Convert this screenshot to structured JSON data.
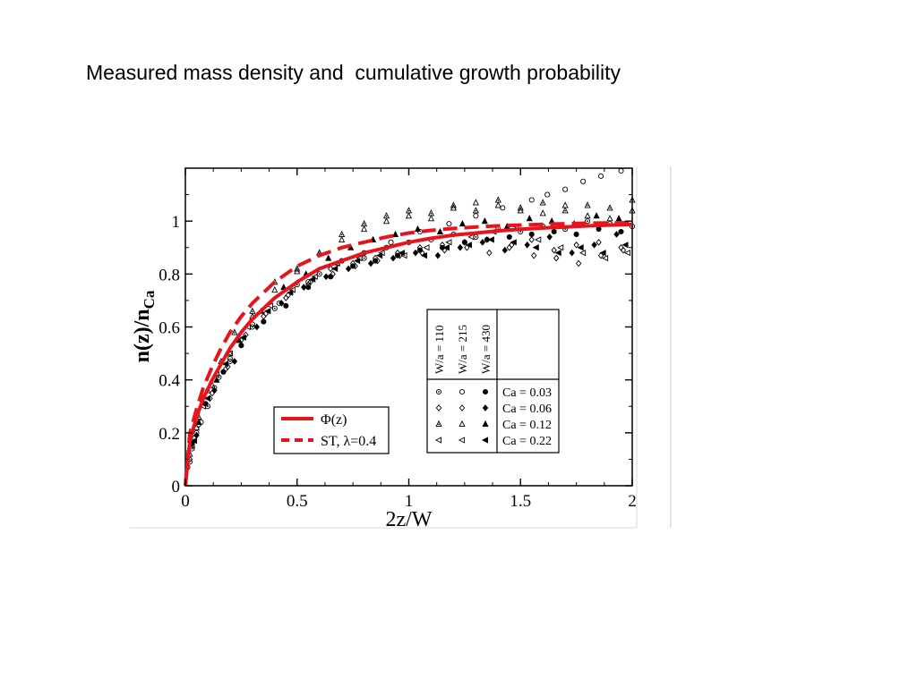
{
  "slide": {
    "title": "Measured mass density and  cumulative growth probability"
  },
  "colors": {
    "fit_line": "#e8141b",
    "markers": "#000000",
    "frame": "#000000"
  },
  "chart_data": {
    "type": "scatter",
    "xlabel": "2z/W",
    "ylabel_main": "n(z)/n",
    "ylabel_sub": "Ca",
    "xlim": [
      0,
      2
    ],
    "ylim": [
      0,
      1.2
    ],
    "x_ticks": [
      {
        "value": 0,
        "label": "0"
      },
      {
        "value": 0.5,
        "label": "0.5"
      },
      {
        "value": 1,
        "label": "1"
      },
      {
        "value": 1.5,
        "label": "1.5"
      },
      {
        "value": 2,
        "label": "2"
      }
    ],
    "y_ticks": [
      {
        "value": 0,
        "label": "0"
      },
      {
        "value": 0.2,
        "label": "0.2"
      },
      {
        "value": 0.4,
        "label": "0.4"
      },
      {
        "value": 0.6,
        "label": "0.6"
      },
      {
        "value": 0.8,
        "label": "0.8"
      },
      {
        "value": 1,
        "label": "1"
      }
    ],
    "lines": [
      {
        "label": "Φ(z)",
        "style": "solid",
        "x": [
          0,
          0.02,
          0.05,
          0.08,
          0.12,
          0.16,
          0.2,
          0.25,
          0.3,
          0.4,
          0.5,
          0.6,
          0.7,
          0.8,
          0.9,
          1.0,
          1.1,
          1.2,
          1.3,
          1.4,
          1.5,
          1.6,
          1.7,
          1.8,
          1.9,
          2.0
        ],
        "y": [
          0,
          0.17,
          0.26,
          0.33,
          0.4,
          0.46,
          0.52,
          0.58,
          0.63,
          0.71,
          0.77,
          0.82,
          0.85,
          0.88,
          0.9,
          0.92,
          0.935,
          0.947,
          0.955,
          0.963,
          0.969,
          0.974,
          0.978,
          0.982,
          0.985,
          0.988
        ]
      },
      {
        "label": "ST, λ=0.4",
        "style": "dashed",
        "x": [
          0,
          0.02,
          0.05,
          0.08,
          0.12,
          0.16,
          0.2,
          0.25,
          0.3,
          0.4,
          0.5,
          0.6,
          0.7,
          0.8,
          0.9,
          1.0,
          1.1,
          1.2,
          1.3,
          1.4,
          1.5,
          1.6,
          1.7,
          1.8,
          1.9,
          2.0
        ],
        "y": [
          0,
          0.2,
          0.29,
          0.37,
          0.45,
          0.52,
          0.58,
          0.64,
          0.69,
          0.77,
          0.83,
          0.87,
          0.9,
          0.92,
          0.94,
          0.955,
          0.965,
          0.972,
          0.978,
          0.982,
          0.985,
          0.988,
          0.99,
          0.992,
          0.993,
          0.994
        ]
      }
    ],
    "scatter_series": [
      {
        "name": "W/a = 110, Ca = 0.03",
        "marker": "circle-dot",
        "points": [
          [
            0.01,
            0.07
          ],
          [
            0.03,
            0.14
          ],
          [
            0.05,
            0.2
          ],
          [
            0.1,
            0.3
          ],
          [
            0.15,
            0.41
          ],
          [
            0.2,
            0.47
          ],
          [
            0.3,
            0.6
          ],
          [
            0.4,
            0.67
          ],
          [
            0.5,
            0.76
          ],
          [
            0.6,
            0.8
          ],
          [
            0.7,
            0.85
          ],
          [
            0.8,
            0.86
          ],
          [
            0.9,
            0.9
          ],
          [
            1.0,
            0.92
          ],
          [
            1.1,
            0.93
          ],
          [
            1.2,
            0.95
          ],
          [
            1.3,
            0.94
          ],
          [
            1.4,
            0.97
          ],
          [
            1.5,
            0.96
          ],
          [
            1.6,
            0.98
          ],
          [
            1.7,
            0.97
          ],
          [
            1.8,
            1.0
          ],
          [
            1.9,
            0.99
          ],
          [
            2.0,
            0.98
          ]
        ]
      },
      {
        "name": "W/a = 110, Ca = 0.06",
        "marker": "diamond-open",
        "points": [
          [
            0.02,
            0.1
          ],
          [
            0.06,
            0.23
          ],
          [
            0.12,
            0.35
          ],
          [
            0.18,
            0.44
          ],
          [
            0.25,
            0.55
          ],
          [
            0.35,
            0.64
          ],
          [
            0.45,
            0.71
          ],
          [
            0.55,
            0.76
          ],
          [
            0.65,
            0.82
          ],
          [
            0.75,
            0.84
          ],
          [
            0.85,
            0.86
          ],
          [
            0.95,
            0.88
          ],
          [
            1.05,
            0.9
          ],
          [
            1.15,
            0.91
          ],
          [
            1.25,
            0.92
          ],
          [
            1.35,
            0.93
          ],
          [
            1.45,
            0.9
          ],
          [
            1.55,
            0.93
          ],
          [
            1.65,
            0.89
          ],
          [
            1.75,
            0.91
          ],
          [
            1.85,
            0.92
          ],
          [
            1.95,
            0.9
          ]
        ]
      },
      {
        "name": "W/a = 110, Ca = 0.12",
        "marker": "triangle-dot",
        "points": [
          [
            0.02,
            0.12
          ],
          [
            0.06,
            0.26
          ],
          [
            0.1,
            0.36
          ],
          [
            0.16,
            0.47
          ],
          [
            0.22,
            0.58
          ],
          [
            0.3,
            0.66
          ],
          [
            0.4,
            0.77
          ],
          [
            0.5,
            0.82
          ],
          [
            0.6,
            0.88
          ],
          [
            0.7,
            0.95
          ],
          [
            0.8,
            0.99
          ],
          [
            0.9,
            1.02
          ],
          [
            1.0,
            1.04
          ],
          [
            1.1,
            1.03
          ],
          [
            1.2,
            1.06
          ],
          [
            1.3,
            1.04
          ],
          [
            1.4,
            1.08
          ],
          [
            1.5,
            1.05
          ],
          [
            1.6,
            1.07
          ],
          [
            1.7,
            1.04
          ],
          [
            1.8,
            1.06
          ],
          [
            1.9,
            1.05
          ],
          [
            2.0,
            1.08
          ]
        ]
      },
      {
        "name": "W/a = 110, Ca = 0.22",
        "marker": "tri-left-open",
        "points": [
          [
            0.03,
            0.15
          ],
          [
            0.08,
            0.3
          ],
          [
            0.14,
            0.42
          ],
          [
            0.2,
            0.5
          ],
          [
            0.28,
            0.6
          ],
          [
            0.38,
            0.68
          ],
          [
            0.48,
            0.74
          ],
          [
            0.58,
            0.79
          ],
          [
            0.68,
            0.84
          ],
          [
            0.78,
            0.86
          ],
          [
            0.88,
            0.88
          ],
          [
            0.98,
            0.87
          ],
          [
            1.08,
            0.9
          ],
          [
            1.18,
            0.92
          ],
          [
            1.28,
            0.94
          ],
          [
            1.38,
            0.96
          ],
          [
            1.48,
            0.98
          ],
          [
            1.58,
            0.93
          ],
          [
            1.68,
            0.9
          ],
          [
            1.78,
            0.88
          ],
          [
            1.88,
            0.86
          ],
          [
            1.98,
            0.88
          ]
        ]
      },
      {
        "name": "W/a = 215, Ca = 0.03",
        "marker": "circle-open",
        "points": [
          [
            0.02,
            0.09
          ],
          [
            0.07,
            0.24
          ],
          [
            0.13,
            0.37
          ],
          [
            0.2,
            0.48
          ],
          [
            0.3,
            0.61
          ],
          [
            0.42,
            0.69
          ],
          [
            0.55,
            0.77
          ],
          [
            0.68,
            0.84
          ],
          [
            0.8,
            0.88
          ],
          [
            0.92,
            0.92
          ],
          [
            1.05,
            0.96
          ],
          [
            1.18,
            0.99
          ],
          [
            1.3,
            1.02
          ],
          [
            1.42,
            1.05
          ],
          [
            1.55,
            1.08
          ],
          [
            1.62,
            1.1
          ],
          [
            1.7,
            1.12
          ],
          [
            1.78,
            1.15
          ],
          [
            1.86,
            1.17
          ],
          [
            1.95,
            1.19
          ]
        ]
      },
      {
        "name": "W/a = 215, Ca = 0.06",
        "marker": "diamond-open",
        "points": [
          [
            0.04,
            0.18
          ],
          [
            0.11,
            0.33
          ],
          [
            0.19,
            0.45
          ],
          [
            0.27,
            0.57
          ],
          [
            0.36,
            0.65
          ],
          [
            0.46,
            0.72
          ],
          [
            0.56,
            0.77
          ],
          [
            0.66,
            0.8
          ],
          [
            0.76,
            0.83
          ],
          [
            0.86,
            0.85
          ],
          [
            0.96,
            0.87
          ],
          [
            1.06,
            0.88
          ],
          [
            1.16,
            0.89
          ],
          [
            1.26,
            0.9
          ],
          [
            1.36,
            0.88
          ],
          [
            1.46,
            0.91
          ],
          [
            1.56,
            0.87
          ],
          [
            1.66,
            0.86
          ],
          [
            1.76,
            0.84
          ],
          [
            1.86,
            0.87
          ],
          [
            1.96,
            0.89
          ]
        ]
      },
      {
        "name": "W/a = 215, Ca = 0.12",
        "marker": "triangle-open",
        "points": [
          [
            0.05,
            0.22
          ],
          [
            0.12,
            0.38
          ],
          [
            0.2,
            0.5
          ],
          [
            0.3,
            0.64
          ],
          [
            0.4,
            0.74
          ],
          [
            0.5,
            0.81
          ],
          [
            0.6,
            0.88
          ],
          [
            0.7,
            0.93
          ],
          [
            0.8,
            0.97
          ],
          [
            0.9,
            1.0
          ],
          [
            1.0,
            1.02
          ],
          [
            1.1,
            1.01
          ],
          [
            1.2,
            1.05
          ],
          [
            1.3,
            1.07
          ],
          [
            1.4,
            1.06
          ],
          [
            1.5,
            1.04
          ],
          [
            1.6,
            1.03
          ],
          [
            1.7,
            1.06
          ],
          [
            1.8,
            1.02
          ],
          [
            1.9,
            1.01
          ],
          [
            2.0,
            1.04
          ]
        ]
      },
      {
        "name": "W/a = 430, Ca = 0.03",
        "marker": "circle-filled",
        "points": [
          [
            0.03,
            0.16
          ],
          [
            0.09,
            0.31
          ],
          [
            0.17,
            0.43
          ],
          [
            0.25,
            0.53
          ],
          [
            0.35,
            0.62
          ],
          [
            0.45,
            0.68
          ],
          [
            0.55,
            0.75
          ],
          [
            0.65,
            0.79
          ],
          [
            0.75,
            0.83
          ],
          [
            0.85,
            0.85
          ],
          [
            0.95,
            0.87
          ],
          [
            1.05,
            0.89
          ],
          [
            1.15,
            0.9
          ],
          [
            1.25,
            0.92
          ],
          [
            1.35,
            0.93
          ],
          [
            1.45,
            0.94
          ],
          [
            1.55,
            0.95
          ],
          [
            1.65,
            0.96
          ],
          [
            1.75,
            0.95
          ],
          [
            1.85,
            0.97
          ],
          [
            1.95,
            0.96
          ]
        ]
      },
      {
        "name": "W/a = 430, Ca = 0.06",
        "marker": "diamond-filled",
        "points": [
          [
            0.05,
            0.19
          ],
          [
            0.13,
            0.36
          ],
          [
            0.22,
            0.47
          ],
          [
            0.32,
            0.6
          ],
          [
            0.43,
            0.69
          ],
          [
            0.53,
            0.75
          ],
          [
            0.63,
            0.79
          ],
          [
            0.73,
            0.82
          ],
          [
            0.83,
            0.84
          ],
          [
            0.93,
            0.86
          ],
          [
            1.03,
            0.88
          ],
          [
            1.13,
            0.87
          ],
          [
            1.23,
            0.9
          ],
          [
            1.33,
            0.92
          ],
          [
            1.43,
            0.89
          ],
          [
            1.53,
            0.91
          ],
          [
            1.63,
            0.94
          ],
          [
            1.73,
            0.88
          ],
          [
            1.83,
            0.91
          ],
          [
            1.93,
            0.95
          ]
        ]
      },
      {
        "name": "W/a = 430, Ca = 0.12",
        "marker": "triangle-filled",
        "points": [
          [
            0.06,
            0.24
          ],
          [
            0.14,
            0.4
          ],
          [
            0.24,
            0.55
          ],
          [
            0.34,
            0.66
          ],
          [
            0.44,
            0.75
          ],
          [
            0.54,
            0.8
          ],
          [
            0.64,
            0.86
          ],
          [
            0.74,
            0.9
          ],
          [
            0.84,
            0.93
          ],
          [
            0.94,
            0.95
          ],
          [
            1.04,
            0.97
          ],
          [
            1.14,
            0.96
          ],
          [
            1.24,
            0.99
          ],
          [
            1.34,
            1.0
          ],
          [
            1.44,
            0.98
          ],
          [
            1.54,
            1.01
          ],
          [
            1.64,
            1.0
          ],
          [
            1.74,
            0.99
          ],
          [
            1.84,
            1.02
          ],
          [
            1.94,
            1.01
          ]
        ]
      },
      {
        "name": "W/a = 430, Ca = 0.22",
        "marker": "tri-left-filled",
        "points": [
          [
            0.04,
            0.17
          ],
          [
            0.1,
            0.33
          ],
          [
            0.18,
            0.46
          ],
          [
            0.26,
            0.56
          ],
          [
            0.37,
            0.66
          ],
          [
            0.47,
            0.73
          ],
          [
            0.57,
            0.78
          ],
          [
            0.67,
            0.82
          ],
          [
            0.77,
            0.85
          ],
          [
            0.87,
            0.87
          ],
          [
            0.97,
            0.88
          ],
          [
            1.07,
            0.87
          ],
          [
            1.17,
            0.9
          ],
          [
            1.27,
            0.91
          ],
          [
            1.37,
            0.93
          ],
          [
            1.47,
            0.92
          ],
          [
            1.57,
            0.9
          ],
          [
            1.67,
            0.88
          ],
          [
            1.77,
            0.9
          ],
          [
            1.87,
            0.88
          ],
          [
            1.97,
            0.91
          ]
        ]
      }
    ],
    "legend_lines": [
      {
        "label": "Φ(z)",
        "style": "solid"
      },
      {
        "label": "ST, λ=0.4",
        "style": "dashed"
      }
    ],
    "legend_table": {
      "columns": [
        "W/a = 110",
        "W/a = 215",
        "W/a = 430"
      ],
      "rows": [
        "Ca = 0.03",
        "Ca = 0.06",
        "Ca = 0.12",
        "Ca = 0.22"
      ],
      "markers": [
        [
          "circle-dot",
          "circle-open",
          "circle-filled"
        ],
        [
          "diamond-open",
          "diamond-open",
          "diamond-filled"
        ],
        [
          "triangle-dot",
          "triangle-open",
          "triangle-filled"
        ],
        [
          "tri-left-open",
          "tri-left-open",
          "tri-left-filled"
        ]
      ]
    }
  }
}
